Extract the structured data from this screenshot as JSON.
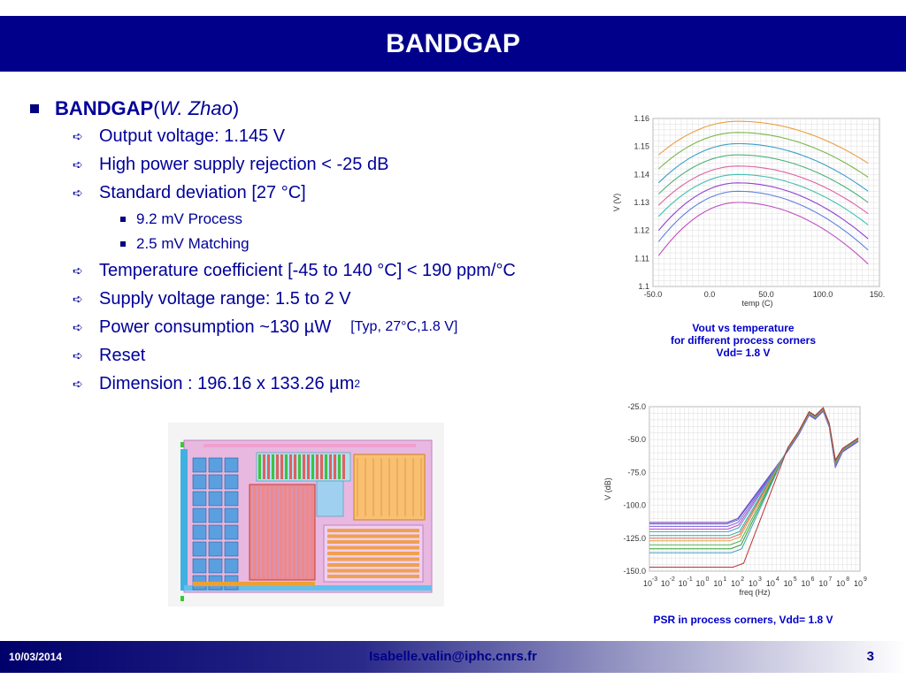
{
  "title": "BANDGAP",
  "heading": {
    "main": "BANDGAP",
    "paren_open": " (",
    "author": "W. Zhao",
    "paren_close": ")"
  },
  "items": [
    {
      "text": "Output voltage: 1.145 V"
    },
    {
      "text": "High power supply rejection  < -25 dB"
    },
    {
      "text": "Standard deviation [27 °C]"
    },
    {
      "text": "Temperature coefficient  [-45 to 140 °C]  < 190 ppm/°C"
    },
    {
      "text": "Supply voltage range: 1.5 to 2 V"
    },
    {
      "text": "Power consumption  ~130 µW",
      "note": "[Typ, 27°C,1.8 V]"
    },
    {
      "text": "Reset"
    },
    {
      "text": "Dimension : 196.16 x 133.26 µm",
      "sup": "2"
    }
  ],
  "sub_items": [
    "9.2 mV Process",
    "2.5 mV Matching"
  ],
  "chart_data": [
    {
      "type": "line",
      "title": "",
      "xlabel": "temp (C)",
      "ylabel": "V (V)",
      "xlim": [
        -50,
        150
      ],
      "ylim": [
        1.1,
        1.16
      ],
      "x_ticks": [
        "-50.0",
        "0.0",
        "50.0",
        "100.0",
        "150.0"
      ],
      "y_ticks": [
        "1.16",
        "1.15",
        "1.14",
        "1.13",
        "1.12",
        "1.11",
        "1.1"
      ],
      "grid": true,
      "caption": [
        "Vout vs temperature",
        "for different process corners",
        "Vdd= 1.8 V"
      ],
      "series": [
        {
          "color": "#e8a040",
          "peak_x": 25,
          "peak_y": 1.159,
          "right_y": 1.144
        },
        {
          "color": "#7ab648",
          "peak_x": 25,
          "peak_y": 1.155,
          "right_y": 1.139
        },
        {
          "color": "#3aa0c8",
          "peak_x": 25,
          "peak_y": 1.151,
          "right_y": 1.134
        },
        {
          "color": "#50b080",
          "peak_x": 25,
          "peak_y": 1.147,
          "right_y": 1.13
        },
        {
          "color": "#e060a0",
          "peak_x": 25,
          "peak_y": 1.143,
          "right_y": 1.126
        },
        {
          "color": "#40c0b0",
          "peak_x": 25,
          "peak_y": 1.14,
          "right_y": 1.122
        },
        {
          "color": "#9040d0",
          "peak_x": 25,
          "peak_y": 1.137,
          "right_y": 1.117
        },
        {
          "color": "#6080e0",
          "peak_x": 25,
          "peak_y": 1.134,
          "right_y": 1.113
        },
        {
          "color": "#c050c0",
          "peak_x": 25,
          "peak_y": 1.13,
          "right_y": 1.108
        }
      ]
    },
    {
      "type": "line",
      "title": "",
      "xlabel": "freq (Hz)",
      "ylabel": "V (dB)",
      "x_scale": "log",
      "xlim": [
        -3,
        9
      ],
      "ylim": [
        -150,
        -25
      ],
      "x_ticks": [
        "-3",
        "-2",
        "-1",
        "0",
        "1",
        "2",
        "3",
        "4",
        "5",
        "6",
        "7",
        "8",
        "9"
      ],
      "x_tick_base": "10",
      "y_ticks": [
        "-25.0",
        "-50.0",
        "-75.0",
        "-100.0",
        "-125.0",
        "-150.0"
      ],
      "grid": true,
      "caption": [
        "PSR in process corners, Vdd= 1.8 V"
      ],
      "series": [
        {
          "color": "#8040c0",
          "floor": -113
        },
        {
          "color": "#4060d0",
          "floor": -114
        },
        {
          "color": "#8060e0",
          "floor": -116
        },
        {
          "color": "#c040c0",
          "floor": -118
        },
        {
          "color": "#40a0d0",
          "floor": -120
        },
        {
          "color": "#20b0a0",
          "floor": -123
        },
        {
          "color": "#e06060",
          "floor": -125
        },
        {
          "color": "#e0a040",
          "floor": -127
        },
        {
          "color": "#50b050",
          "floor": -130
        },
        {
          "color": "#30a030",
          "floor": -133
        },
        {
          "color": "#40a0c0",
          "floor": -136
        },
        {
          "color": "#c03030",
          "floor": -147
        }
      ],
      "common": {
        "knee_x": 2.1,
        "slope_end_x": 5.5,
        "slope_end_y": -45,
        "peak1_x": 6.1,
        "peak1_y": -30,
        "peak2_x": 6.9,
        "peak2_y": -27,
        "dip_x": 7.6,
        "dip_y": -68,
        "end_x": 8.9,
        "end_y": -50
      }
    }
  ],
  "footer": {
    "date": "10/03/2014",
    "email": "Isabelle.valin@iphc.cnrs.fr",
    "page": "3"
  }
}
